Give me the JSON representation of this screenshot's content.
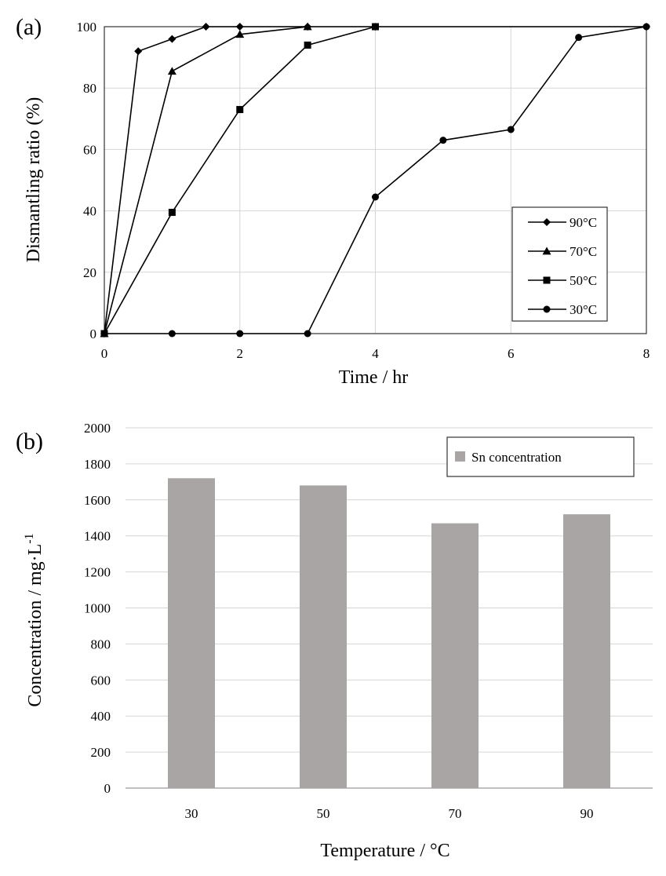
{
  "chart_data": [
    {
      "type": "line",
      "panel_label": "(a)",
      "xlabel": "Time / hr",
      "ylabel": "Dismantling ratio (%)",
      "xlim": [
        0,
        8
      ],
      "ylim": [
        0,
        100
      ],
      "xticks": [
        0,
        2,
        4,
        6,
        8
      ],
      "yticks": [
        0,
        20,
        40,
        60,
        80,
        100
      ],
      "grid": true,
      "legend_position": "right",
      "series": [
        {
          "name": "90°C",
          "marker": "diamond",
          "x": [
            0,
            0.5,
            1,
            1.5,
            2,
            3,
            4,
            8
          ],
          "y": [
            0,
            92,
            96,
            100,
            100,
            100,
            100,
            100
          ]
        },
        {
          "name": "70°C",
          "marker": "triangle",
          "x": [
            0,
            1,
            2,
            3
          ],
          "y": [
            0,
            85.5,
            97.5,
            100
          ]
        },
        {
          "name": "50°C",
          "marker": "square",
          "x": [
            0,
            1,
            2,
            3,
            4
          ],
          "y": [
            0,
            39.5,
            73,
            94,
            100
          ]
        },
        {
          "name": "30°C",
          "marker": "circle",
          "x": [
            0,
            1,
            2,
            3,
            4,
            5,
            6,
            7,
            8
          ],
          "y": [
            0,
            0,
            0,
            0,
            44.5,
            63,
            66.5,
            96.5,
            100
          ]
        }
      ]
    },
    {
      "type": "bar",
      "panel_label": "(b)",
      "xlabel": "Temperature / °C",
      "ylabel": "Concentration / mg·L",
      "ylabel_superscript": "-1",
      "ylim": [
        0,
        2000
      ],
      "yticks": [
        0,
        200,
        400,
        600,
        800,
        1000,
        1200,
        1400,
        1600,
        1800,
        2000
      ],
      "grid": true,
      "legend_position": "top-right",
      "categories": [
        "30",
        "50",
        "70",
        "90"
      ],
      "series": [
        {
          "name": "Sn concentration",
          "color": "#a9a5a5",
          "values": [
            1720,
            1680,
            1470,
            1520
          ]
        }
      ]
    }
  ]
}
